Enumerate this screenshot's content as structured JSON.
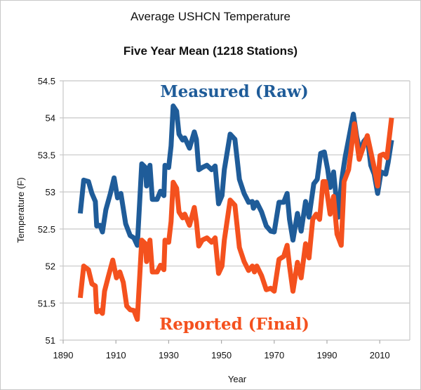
{
  "chart_data": {
    "type": "line",
    "title": "Average USHCN Temperature",
    "subtitle": "Five Year Mean (1218 Stations)",
    "xlabel": "Year",
    "ylabel": "Temperature (F)",
    "xlim": [
      1890,
      2019
    ],
    "ylim": [
      51,
      54.5
    ],
    "xticks": [
      1890,
      1910,
      1930,
      1950,
      1970,
      1990,
      2010
    ],
    "yticks": [
      51,
      51.5,
      52,
      52.5,
      53,
      53.5,
      54,
      54.5
    ],
    "ytick_labels": [
      "51",
      "51.5",
      "52",
      "52.5",
      "53",
      "53.5",
      "54",
      "54.5"
    ],
    "grid": "horizontal",
    "legend": "none",
    "annotations": [
      {
        "text": "Measured (Raw)",
        "color": "#1f5c99"
      },
      {
        "text": "Reported (Final)",
        "color": "#f4511e"
      }
    ],
    "series": [
      {
        "name": "Measured (Raw)",
        "color": "#1f5c99",
        "points": [
          [
            1896.5,
            52.71
          ],
          [
            1897.8,
            53.16
          ],
          [
            1899.6,
            53.14
          ],
          [
            1900.9,
            52.98
          ],
          [
            1902.2,
            52.87
          ],
          [
            1902.7,
            52.54
          ],
          [
            1904.0,
            52.55
          ],
          [
            1904.9,
            52.46
          ],
          [
            1906.2,
            52.76
          ],
          [
            1907.9,
            52.98
          ],
          [
            1909.3,
            53.19
          ],
          [
            1910.6,
            52.92
          ],
          [
            1911.9,
            52.98
          ],
          [
            1913.7,
            52.57
          ],
          [
            1915.4,
            52.41
          ],
          [
            1916.8,
            52.38
          ],
          [
            1918.1,
            52.28
          ],
          [
            1919.8,
            53.38
          ],
          [
            1921.2,
            53.33
          ],
          [
            1921.6,
            53.08
          ],
          [
            1922.9,
            53.36
          ],
          [
            1923.8,
            52.9
          ],
          [
            1925.6,
            52.9
          ],
          [
            1926.9,
            53.01
          ],
          [
            1928.2,
            52.95
          ],
          [
            1928.6,
            53.36
          ],
          [
            1930.0,
            53.33
          ],
          [
            1930.9,
            53.62
          ],
          [
            1931.7,
            54.16
          ],
          [
            1933.0,
            54.09
          ],
          [
            1933.9,
            53.78
          ],
          [
            1935.3,
            53.7
          ],
          [
            1936.1,
            53.73
          ],
          [
            1937.9,
            53.59
          ],
          [
            1939.7,
            53.81
          ],
          [
            1940.5,
            53.71
          ],
          [
            1941.4,
            53.3
          ],
          [
            1942.7,
            53.33
          ],
          [
            1944.5,
            53.36
          ],
          [
            1946.3,
            53.3
          ],
          [
            1947.6,
            53.35
          ],
          [
            1948.9,
            52.84
          ],
          [
            1950.2,
            52.95
          ],
          [
            1951.1,
            53.3
          ],
          [
            1953.3,
            53.78
          ],
          [
            1955.1,
            53.71
          ],
          [
            1956.8,
            53.17
          ],
          [
            1958.6,
            52.98
          ],
          [
            1960.3,
            52.86
          ],
          [
            1961.7,
            52.87
          ],
          [
            1962.1,
            52.78
          ],
          [
            1963.4,
            52.86
          ],
          [
            1965.2,
            52.73
          ],
          [
            1967.0,
            52.54
          ],
          [
            1968.7,
            52.47
          ],
          [
            1970.0,
            52.46
          ],
          [
            1971.8,
            52.86
          ],
          [
            1973.6,
            52.86
          ],
          [
            1974.9,
            52.98
          ],
          [
            1975.8,
            52.63
          ],
          [
            1977.1,
            52.35
          ],
          [
            1978.8,
            52.71
          ],
          [
            1980.2,
            52.47
          ],
          [
            1981.9,
            52.87
          ],
          [
            1983.2,
            52.66
          ],
          [
            1985.0,
            53.11
          ],
          [
            1986.3,
            53.17
          ],
          [
            1987.6,
            53.52
          ],
          [
            1989.0,
            53.54
          ],
          [
            1990.3,
            53.3
          ],
          [
            1991.2,
            53.06
          ],
          [
            1992.5,
            53.27
          ],
          [
            1994.2,
            52.66
          ],
          [
            1995.6,
            53.17
          ],
          [
            1996.9,
            53.47
          ],
          [
            1998.2,
            53.71
          ],
          [
            2000.0,
            54.05
          ],
          [
            2001.3,
            53.74
          ],
          [
            2002.6,
            53.54
          ],
          [
            2003.9,
            53.68
          ],
          [
            2005.3,
            53.74
          ],
          [
            2006.6,
            53.36
          ],
          [
            2007.9,
            53.24
          ],
          [
            2009.2,
            52.98
          ],
          [
            2010.5,
            53.27
          ],
          [
            2012.3,
            53.24
          ],
          [
            2013.2,
            53.4
          ],
          [
            2014.5,
            53.7
          ]
        ]
      },
      {
        "name": "Reported (Final)",
        "color": "#f4511e",
        "points": [
          [
            1896.5,
            51.57
          ],
          [
            1897.8,
            52.0
          ],
          [
            1899.6,
            51.95
          ],
          [
            1900.9,
            51.76
          ],
          [
            1902.2,
            51.73
          ],
          [
            1902.7,
            51.38
          ],
          [
            1904.0,
            51.4
          ],
          [
            1904.9,
            51.36
          ],
          [
            1905.7,
            51.66
          ],
          [
            1907.0,
            51.84
          ],
          [
            1908.8,
            52.08
          ],
          [
            1910.2,
            51.84
          ],
          [
            1911.5,
            51.92
          ],
          [
            1912.8,
            51.78
          ],
          [
            1914.1,
            51.46
          ],
          [
            1915.4,
            51.41
          ],
          [
            1916.8,
            51.4
          ],
          [
            1918.1,
            51.28
          ],
          [
            1919.8,
            52.35
          ],
          [
            1921.2,
            52.3
          ],
          [
            1921.6,
            52.06
          ],
          [
            1922.9,
            52.35
          ],
          [
            1923.8,
            51.92
          ],
          [
            1925.6,
            51.92
          ],
          [
            1926.9,
            52.01
          ],
          [
            1928.2,
            51.95
          ],
          [
            1928.6,
            52.35
          ],
          [
            1930.0,
            52.32
          ],
          [
            1930.9,
            52.6
          ],
          [
            1931.7,
            53.13
          ],
          [
            1933.0,
            53.05
          ],
          [
            1933.9,
            52.73
          ],
          [
            1935.3,
            52.65
          ],
          [
            1936.1,
            52.7
          ],
          [
            1937.9,
            52.55
          ],
          [
            1939.7,
            52.79
          ],
          [
            1940.5,
            52.6
          ],
          [
            1941.4,
            52.27
          ],
          [
            1942.7,
            52.35
          ],
          [
            1944.5,
            52.38
          ],
          [
            1946.3,
            52.32
          ],
          [
            1947.6,
            52.38
          ],
          [
            1948.9,
            51.9
          ],
          [
            1950.2,
            52.0
          ],
          [
            1951.1,
            52.35
          ],
          [
            1953.3,
            52.89
          ],
          [
            1955.1,
            52.82
          ],
          [
            1956.8,
            52.25
          ],
          [
            1958.6,
            52.06
          ],
          [
            1960.3,
            51.94
          ],
          [
            1961.7,
            52.0
          ],
          [
            1962.5,
            51.92
          ],
          [
            1963.4,
            52.0
          ],
          [
            1965.2,
            51.87
          ],
          [
            1967.0,
            51.68
          ],
          [
            1968.7,
            51.7
          ],
          [
            1970.0,
            51.66
          ],
          [
            1971.8,
            52.09
          ],
          [
            1973.6,
            52.13
          ],
          [
            1974.9,
            52.28
          ],
          [
            1975.8,
            52.0
          ],
          [
            1977.1,
            51.66
          ],
          [
            1978.8,
            52.05
          ],
          [
            1980.2,
            51.84
          ],
          [
            1981.9,
            52.3
          ],
          [
            1983.2,
            52.11
          ],
          [
            1984.6,
            52.63
          ],
          [
            1985.9,
            52.7
          ],
          [
            1987.2,
            52.63
          ],
          [
            1988.5,
            53.14
          ],
          [
            1989.4,
            53.14
          ],
          [
            1991.2,
            52.7
          ],
          [
            1992.5,
            52.94
          ],
          [
            1993.8,
            52.43
          ],
          [
            1995.4,
            52.28
          ],
          [
            1996.5,
            53.14
          ],
          [
            1998.2,
            53.3
          ],
          [
            2000.4,
            53.92
          ],
          [
            2002.2,
            53.44
          ],
          [
            2005.3,
            53.76
          ],
          [
            2007.9,
            53.33
          ],
          [
            2009.2,
            53.08
          ],
          [
            2010.1,
            53.49
          ],
          [
            2011.4,
            53.51
          ],
          [
            2012.7,
            53.46
          ],
          [
            2014.5,
            54.0
          ]
        ]
      }
    ]
  }
}
